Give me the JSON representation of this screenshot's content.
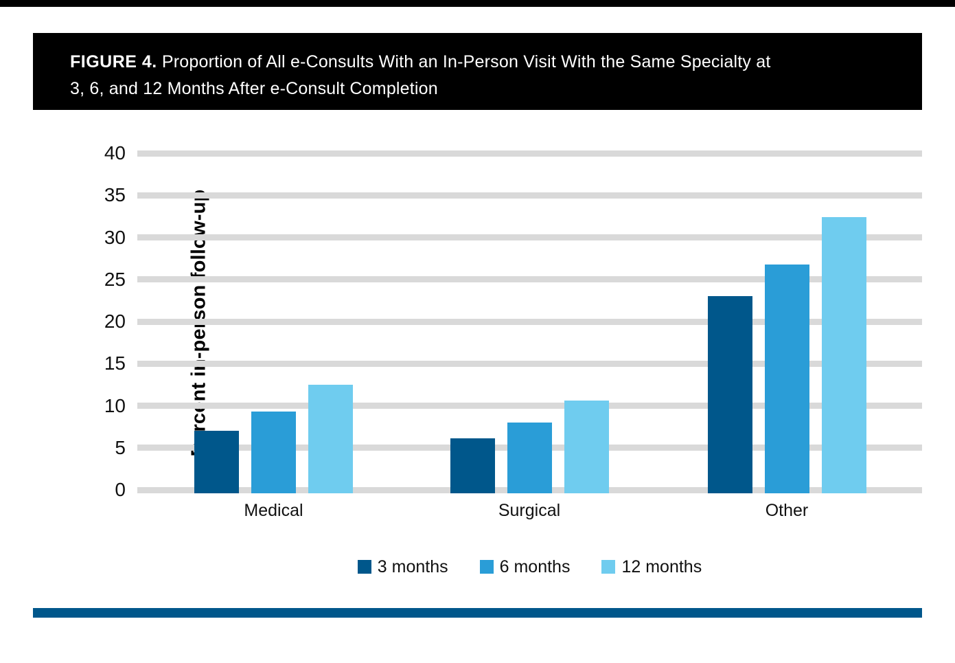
{
  "header": {
    "figure_label": "FIGURE 4.",
    "title_lines": [
      "Proportion of All e-Consults With an In-Person Visit With the Same Specialty at",
      "3, 6, and 12 Months After e-Consult Completion"
    ]
  },
  "chart_data": {
    "type": "bar",
    "categories": [
      "Medical",
      "Surgical",
      "Other"
    ],
    "series": [
      {
        "name": "3 months",
        "color": "#00578B",
        "values": [
          7.0,
          6.1,
          23.0
        ]
      },
      {
        "name": "6 months",
        "color": "#2A9DD7",
        "values": [
          9.3,
          8.0,
          26.8
        ]
      },
      {
        "name": "12 months",
        "color": "#6FCCEF",
        "values": [
          12.5,
          10.6,
          32.4
        ]
      }
    ],
    "ylabel": "Percent in-person follow-up",
    "xlabel": "",
    "ylim": [
      0,
      40
    ],
    "yticks": [
      0,
      5,
      10,
      15,
      20,
      25,
      30,
      35,
      40
    ],
    "grid": "horizontal",
    "gridline_color": "#D9D9D9",
    "legend_position": "bottom",
    "accent_rule_color": "#00578B",
    "header_bg_color": "#000000"
  }
}
